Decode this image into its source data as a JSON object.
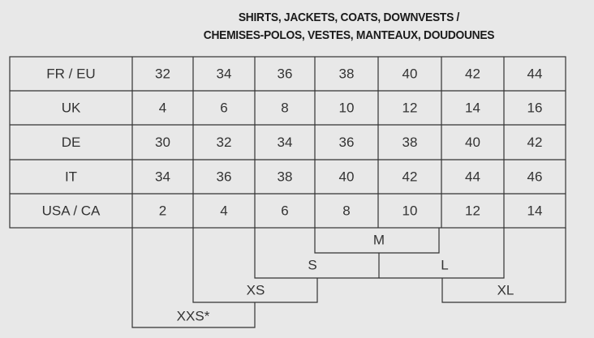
{
  "title": {
    "line1": "SHIRTS, JACKETS, COATS, DOWNVESTS /",
    "line2": "CHEMISES-POLOS, VESTES, MANTEAUX, DOUDOUNES"
  },
  "table": {
    "rows": [
      {
        "label": "FR / EU",
        "values": [
          "32",
          "34",
          "36",
          "38",
          "40",
          "42",
          "44"
        ]
      },
      {
        "label": "UK",
        "values": [
          "4",
          "6",
          "8",
          "10",
          "12",
          "14",
          "16"
        ]
      },
      {
        "label": "DE",
        "values": [
          "30",
          "32",
          "34",
          "36",
          "38",
          "40",
          "42"
        ]
      },
      {
        "label": "IT",
        "values": [
          "34",
          "36",
          "38",
          "40",
          "42",
          "44",
          "46"
        ]
      },
      {
        "label": "USA / CA",
        "values": [
          "2",
          "4",
          "6",
          "8",
          "10",
          "12",
          "14"
        ]
      }
    ]
  },
  "sizes": {
    "xxs": "XXS*",
    "xs": "XS",
    "s": "S",
    "m": "M",
    "l": "L",
    "xl": "XL"
  }
}
